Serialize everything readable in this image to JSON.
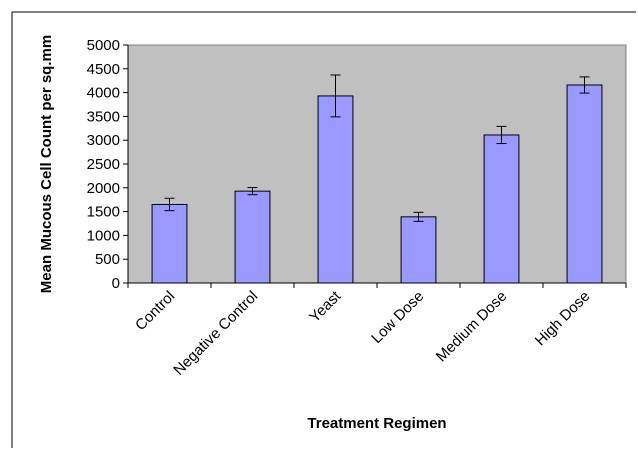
{
  "chart_data": {
    "type": "bar",
    "title": "",
    "xlabel": "Treatment Regimen",
    "ylabel": "Mean Mucous Cell Count per sq.mm",
    "categories": [
      "Control",
      "Negative Control",
      "Yeast",
      "Low Dose",
      "Medium Dose",
      "High Dose"
    ],
    "values": [
      1650,
      1930,
      3930,
      1390,
      3110,
      4160
    ],
    "error": [
      130,
      75,
      440,
      95,
      180,
      170
    ],
    "ylim": [
      0,
      5000
    ],
    "yticks": [
      0,
      500,
      1000,
      1500,
      2000,
      2500,
      3000,
      3500,
      4000,
      4500,
      5000
    ],
    "ytick_labels": [
      "0",
      "500",
      "1000",
      "1500",
      "2000",
      "2500",
      "3000",
      "3500",
      "4000",
      "4500",
      "5000"
    ],
    "grid": false,
    "legend": "none",
    "colors": {
      "bar_fill": "#9999ff",
      "bar_stroke": "#000000",
      "plot_background": "#c0c0c0",
      "page_background": "#ffffff"
    }
  }
}
